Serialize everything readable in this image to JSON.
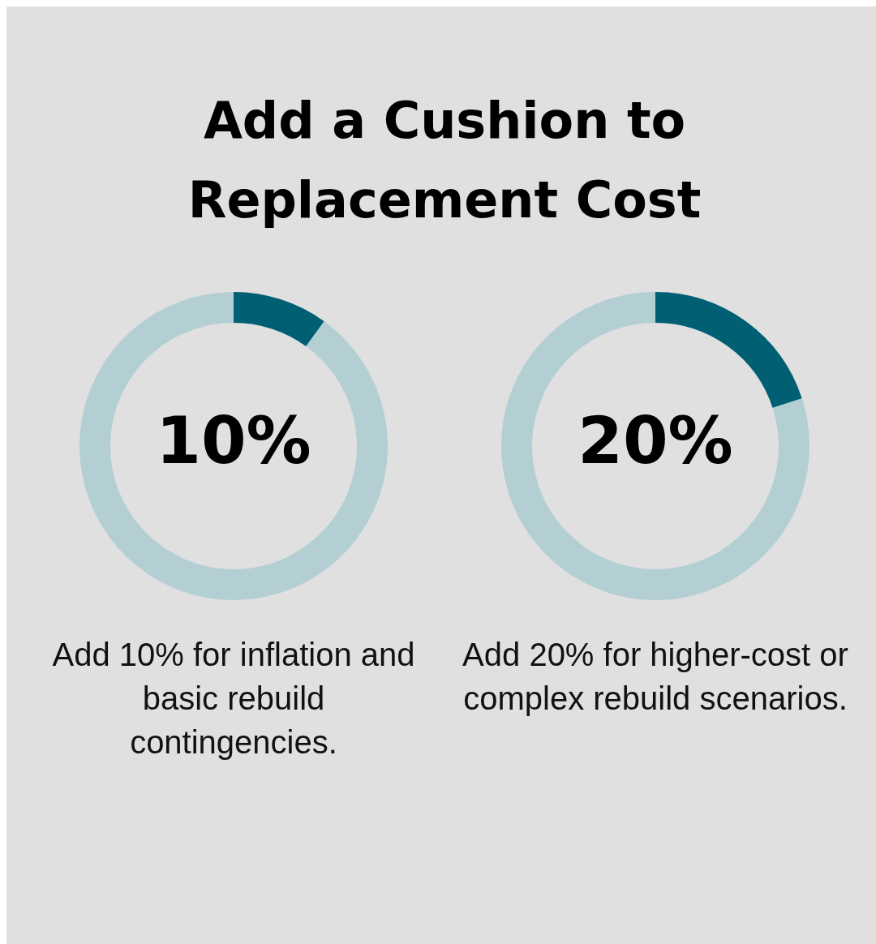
{
  "chart_data": [
    {
      "type": "donut",
      "title": "Add a Cushion to Replacement Cost",
      "categories": [
        null,
        null
      ],
      "values": [
        10,
        90
      ],
      "colors": [
        "#005f73",
        "#b3cfd4"
      ],
      "value_labels": [
        "10%",
        null
      ],
      "annotations": [
        "Add 10% for inflation and basic rebuild contingencies."
      ]
    },
    {
      "type": "donut",
      "categories": [
        null,
        null
      ],
      "values": [
        20,
        80
      ],
      "colors": [
        "#005f73",
        "#b3cfd4"
      ],
      "value_labels": [
        "20%",
        null
      ],
      "annotations": [
        "Add 20% for higher-cost or complex rebuild scenarios."
      ]
    }
  ]
}
